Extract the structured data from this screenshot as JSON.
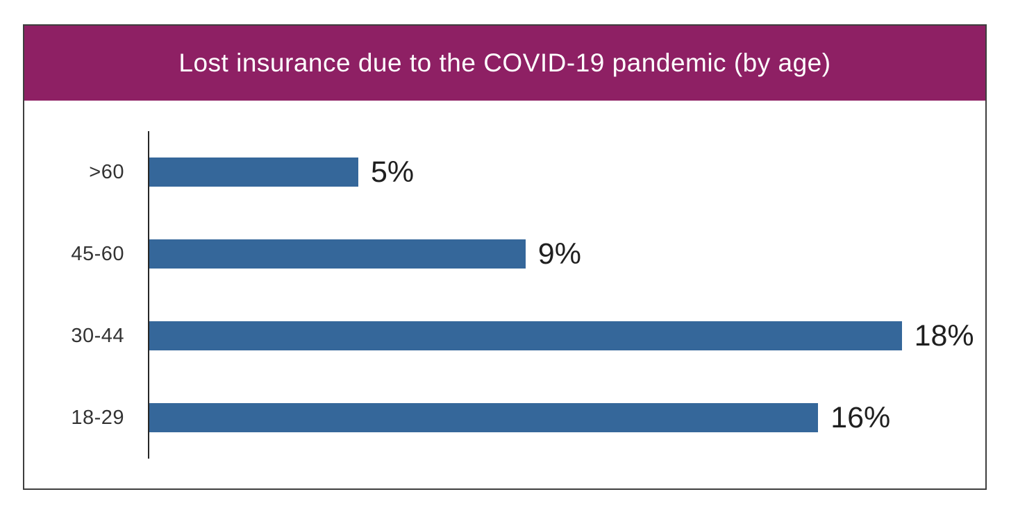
{
  "title": "Lost insurance due to the COVID-19 pandemic (by age)",
  "colors": {
    "banner": "#8e2064",
    "title_text": "#ffffff",
    "bar": "#35679a",
    "frame_border": "#3e3e3e",
    "axis": "#262626",
    "category_label": "#333333",
    "value_label": "#1f1f1f",
    "background": "#ffffff"
  },
  "chart_data": {
    "type": "bar",
    "orientation": "horizontal",
    "title": "Lost insurance due to the COVID-19 pandemic (by age)",
    "categories": [
      ">60",
      "45-60",
      "30-44",
      "18-29"
    ],
    "values": [
      5,
      9,
      18,
      16
    ],
    "value_labels": [
      "5%",
      "9%",
      "18%",
      "16%"
    ],
    "xlim": [
      0,
      20
    ],
    "grid": false,
    "legend": false,
    "value_label_position": "outside-end",
    "category_axis_side": "left"
  }
}
